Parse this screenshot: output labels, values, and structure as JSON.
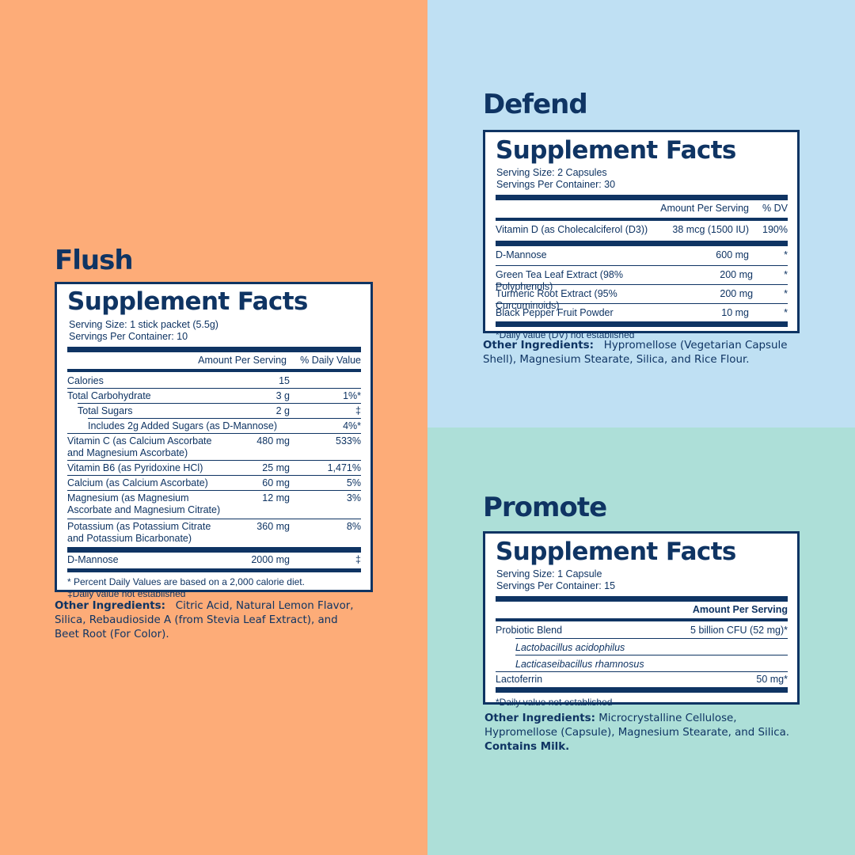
{
  "flush": {
    "title": "Flush",
    "facts_title": "Supplement Facts",
    "serving_size": "Serving Size: 1 stick packet (5.5g)",
    "servings_per_container": "Servings Per Container: 10",
    "header_amount": "Amount Per Serving",
    "header_dv": "% Daily Value",
    "rows": [
      {
        "name": "Calories",
        "amount": "15",
        "dv": ""
      },
      {
        "name": "Total Carbohydrate",
        "amount": "3 g",
        "dv": "1%*"
      },
      {
        "name": "Total Sugars",
        "amount": "2 g",
        "dv": "‡"
      },
      {
        "name": "Includes 2g Added Sugars (as D-Mannose)",
        "amount": "",
        "dv": "4%*"
      },
      {
        "name": "Vitamin C (as Calcium Ascorbate and Magnesium Ascorbate)",
        "amount": "480 mg",
        "dv": "533%"
      },
      {
        "name": "Vitamin B6 (as Pyridoxine HCl)",
        "amount": "25 mg",
        "dv": "1,471%"
      },
      {
        "name": "Calcium (as Calcium Ascorbate)",
        "amount": "60 mg",
        "dv": "5%"
      },
      {
        "name": "Magnesium (as Magnesium Ascorbate and Magnesium Citrate)",
        "amount": "12 mg",
        "dv": "3%"
      },
      {
        "name": "Potassium (as Potassium Citrate and Potassium Bicarbonate)",
        "amount": "360 mg",
        "dv": "8%"
      },
      {
        "name": "D-Mannose",
        "amount": "2000 mg",
        "dv": "‡"
      }
    ],
    "footnote_1": "* Percent Daily Values are based on a 2,000 calorie diet.",
    "footnote_2": "‡Daily value not established",
    "other_label": "Other Ingredients:",
    "other_text": "Citric Acid, Natural Lemon Flavor, Silica, Rebaudioside A (from Stevia Leaf Extract), and Beet Root (For Color)."
  },
  "defend": {
    "title": "Defend",
    "facts_title": "Supplement Facts",
    "serving_size": "Serving Size: 2 Capsules",
    "servings_per_container": "Servings Per Container: 30",
    "header_amount": "Amount Per Serving",
    "header_dv": "% DV",
    "rows": [
      {
        "name": "Vitamin D (as Cholecalciferol (D3))",
        "amount": "38 mcg (1500 IU)",
        "dv": "190%"
      },
      {
        "name": "D-Mannose",
        "amount": "600 mg",
        "dv": "*"
      },
      {
        "name": "Green Tea Leaf Extract (98% Polyphenols)",
        "amount": "200 mg",
        "dv": "*"
      },
      {
        "name": "Turmeric Root Extract (95% Curcuminoids)",
        "amount": "200 mg",
        "dv": "*"
      },
      {
        "name": "Black Pepper Fruit Powder",
        "amount": "10 mg",
        "dv": "*"
      }
    ],
    "footnote": "*Daily value (DV) not established",
    "other_label": "Other Ingredients:",
    "other_text": "Hypromellose (Vegetarian Capsule Shell), Magnesium Stearate, Silica, and Rice Flour."
  },
  "promote": {
    "title": "Promote",
    "facts_title": "Supplement Facts",
    "serving_size": "Serving Size: 1 Capsule",
    "servings_per_container": "Servings Per Container: 15",
    "header_amount": "Amount Per Serving",
    "rows": [
      {
        "name": "Probiotic Blend",
        "amount": "5 billion CFU (52 mg)*"
      },
      {
        "name": "Lactobacillus acidophilus",
        "amount": ""
      },
      {
        "name": "Lacticaseibacillus rhamnosus",
        "amount": ""
      },
      {
        "name": "Lactoferrin",
        "amount": "50 mg*"
      }
    ],
    "footnote": "*Daily value not established",
    "other_label": "Other Ingredients:",
    "other_text": "Microcrystalline Cellulose, Hypromellose (Capsule), Magnesium Stearate, and Silica.",
    "contains": "Contains Milk."
  },
  "colors": {
    "navy": "#0f3463",
    "flush_bg": "#fdac78",
    "defend_bg": "#bfe0f3",
    "promote_bg": "#addfd8"
  }
}
